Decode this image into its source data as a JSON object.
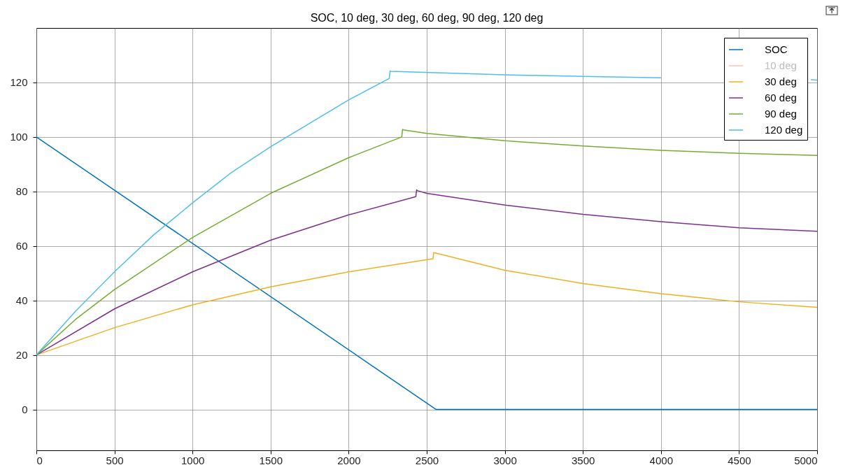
{
  "chart_data": {
    "type": "line",
    "title": "SOC, 10 deg, 30 deg, 60 deg, 90 deg, 120 deg",
    "xlim": [
      0,
      5000
    ],
    "xticks": [
      0,
      500,
      1000,
      1500,
      2000,
      2500,
      3000,
      3500,
      4000,
      4500,
      5000
    ],
    "ylim": [
      -15,
      140
    ],
    "yticks": [
      0,
      20,
      40,
      60,
      80,
      100,
      120
    ],
    "grid": true,
    "legend": "top right",
    "marker": "none",
    "line_style": "solid",
    "series": [
      {
        "name": "SOC",
        "color": "#0072bd",
        "x": [
          0,
          2560,
          5000
        ],
        "values": [
          100,
          0,
          0
        ]
      },
      {
        "name": "10 deg",
        "color": "#f7c6b0"
      },
      {
        "name": "30 deg",
        "color": "#edb120",
        "x": [
          0,
          500,
          1000,
          1500,
          2000,
          2540,
          2545,
          2550,
          3000,
          3500,
          4000,
          4500,
          5000
        ],
        "values": [
          20,
          30.0,
          38.4,
          45.0,
          50.5,
          55.3,
          57.6,
          57.5,
          51.1,
          46.2,
          42.5,
          39.5,
          37.5
        ]
      },
      {
        "name": "60 deg",
        "color": "#7e2f8e",
        "x": [
          0,
          500,
          1000,
          1500,
          2000,
          2430,
          2435,
          2440,
          2500,
          3000,
          3500,
          4000,
          4500,
          5000
        ],
        "values": [
          20,
          36.9,
          50.5,
          62.1,
          71.4,
          78.1,
          80.6,
          80.3,
          79.3,
          75.0,
          71.6,
          68.9,
          66.7,
          65.4
        ]
      },
      {
        "name": "90 deg",
        "color": "#77ac30",
        "x": [
          0,
          250,
          500,
          1000,
          1500,
          2000,
          2340,
          2345,
          2350,
          2500,
          3000,
          3500,
          4000,
          4500,
          5000
        ],
        "values": [
          20,
          33,
          44.0,
          63.1,
          79.3,
          92.4,
          100.0,
          102.8,
          102.6,
          101.3,
          98.6,
          96.7,
          95.1,
          94.0,
          93.2
        ]
      },
      {
        "name": "120 deg",
        "color": "#4dbeee",
        "x": [
          0,
          250,
          500,
          750,
          1000,
          1250,
          1500,
          1750,
          2000,
          2260,
          2265,
          2270,
          3000,
          3500,
          4000,
          4500,
          4960,
          5000
        ],
        "values": [
          20,
          36,
          50.5,
          64,
          75.8,
          87,
          96.4,
          105,
          113.6,
          121.5,
          124.2,
          124.1,
          122.8,
          122.2,
          121.7,
          null,
          121.0,
          120.9
        ]
      }
    ]
  }
}
